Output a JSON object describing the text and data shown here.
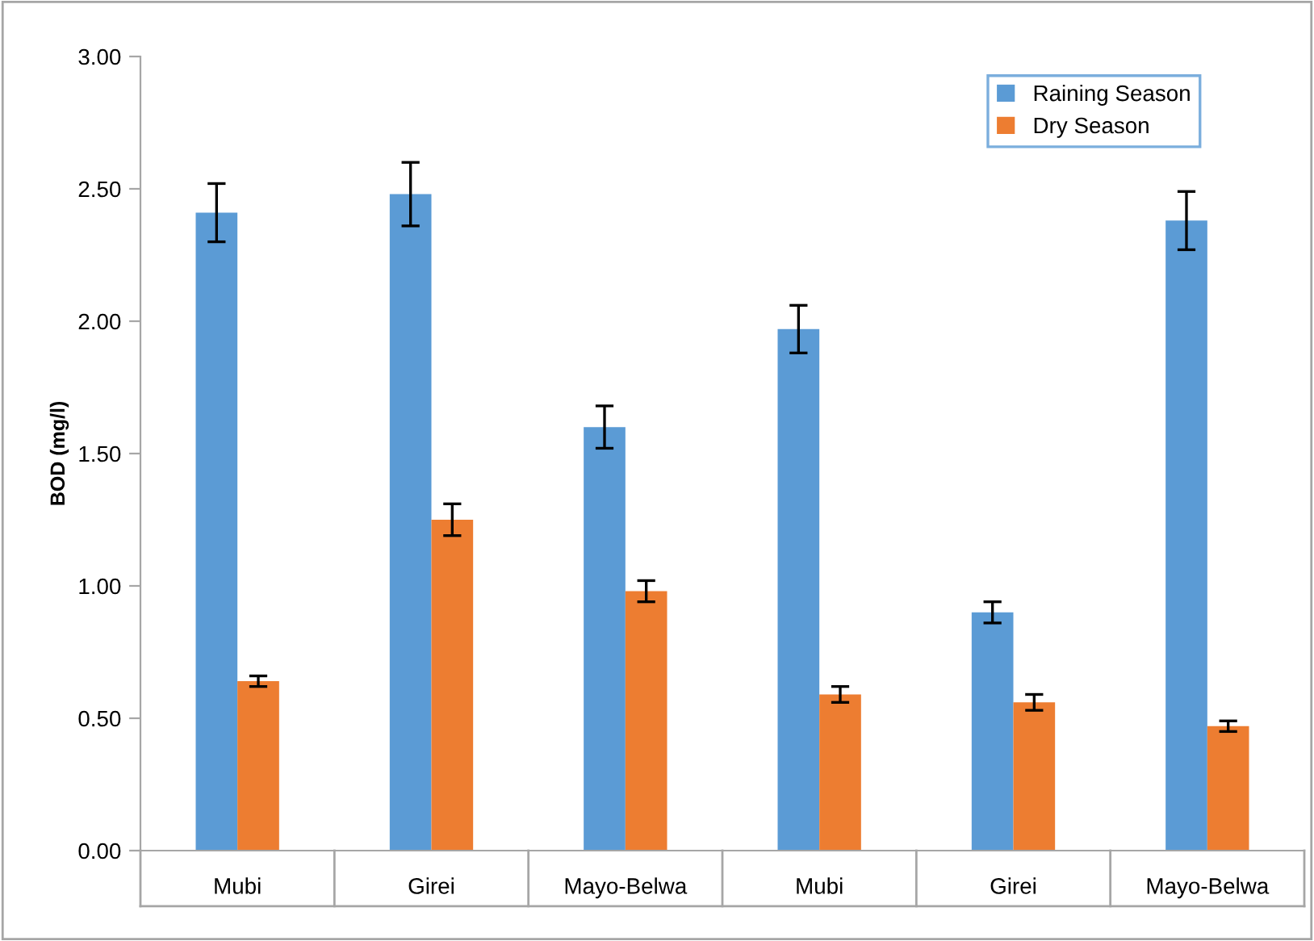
{
  "chart_data": {
    "type": "bar",
    "ylabel": "BOD (mg/l)",
    "categories": [
      "Mubi",
      "Girei",
      "Mayo-Belwa",
      "Mubi",
      "Girei",
      "Mayo-Belwa"
    ],
    "series": [
      {
        "name": "Raining Season",
        "color": "#5b9bd5",
        "values": [
          2.41,
          2.48,
          1.6,
          1.97,
          0.9,
          2.38
        ],
        "errors": [
          0.11,
          0.12,
          0.08,
          0.09,
          0.04,
          0.11
        ]
      },
      {
        "name": "Dry Season",
        "color": "#ed7d31",
        "values": [
          0.64,
          1.25,
          0.98,
          0.59,
          0.56,
          0.47
        ],
        "errors": [
          0.02,
          0.06,
          0.04,
          0.03,
          0.03,
          0.02
        ]
      }
    ],
    "ylim": [
      0,
      3
    ],
    "yticks": [
      {
        "value": 0,
        "label": "0.00"
      },
      {
        "value": 0.5,
        "label": "0.50"
      },
      {
        "value": 1,
        "label": "1.00"
      },
      {
        "value": 1.5,
        "label": "1.50"
      },
      {
        "value": 2,
        "label": "2.00"
      },
      {
        "value": 2.5,
        "label": "2.50"
      },
      {
        "value": 3,
        "label": "3.00"
      }
    ],
    "legend": "top right",
    "grid": false
  }
}
